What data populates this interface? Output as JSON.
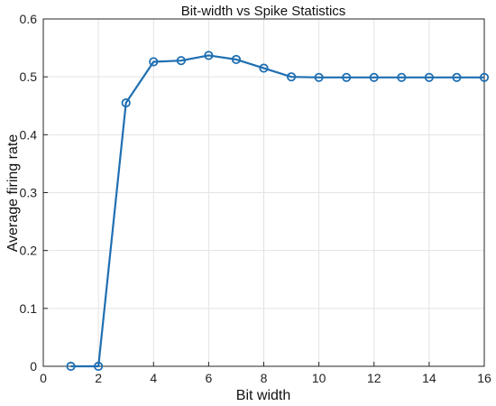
{
  "chart_data": {
    "type": "line",
    "title": "Bit-width vs Spike Statistics",
    "xlabel": "Bit width",
    "ylabel": "Average firing rate",
    "xlim": [
      0,
      16
    ],
    "ylim": [
      0,
      0.6
    ],
    "xticks": [
      0,
      2,
      4,
      6,
      8,
      10,
      12,
      14,
      16
    ],
    "yticks": [
      0,
      0.1,
      0.2,
      0.3,
      0.4,
      0.5,
      0.6
    ],
    "xtick_labels": [
      "0",
      "2",
      "4",
      "6",
      "8",
      "10",
      "12",
      "14",
      "16"
    ],
    "ytick_labels": [
      "0",
      "0.1",
      "0.2",
      "0.3",
      "0.4",
      "0.5",
      "0.6"
    ],
    "grid": true,
    "marker": "circle",
    "color": "#1f6fb2",
    "series": [
      {
        "x": [
          1,
          2,
          3,
          4,
          5,
          6,
          7,
          8,
          9,
          10,
          11,
          12,
          13,
          14,
          15,
          16
        ],
        "values": [
          0,
          0,
          0.455,
          0.526,
          0.528,
          0.537,
          0.53,
          0.515,
          0.5,
          0.499,
          0.499,
          0.499,
          0.499,
          0.499,
          0.499,
          0.499
        ]
      }
    ]
  }
}
